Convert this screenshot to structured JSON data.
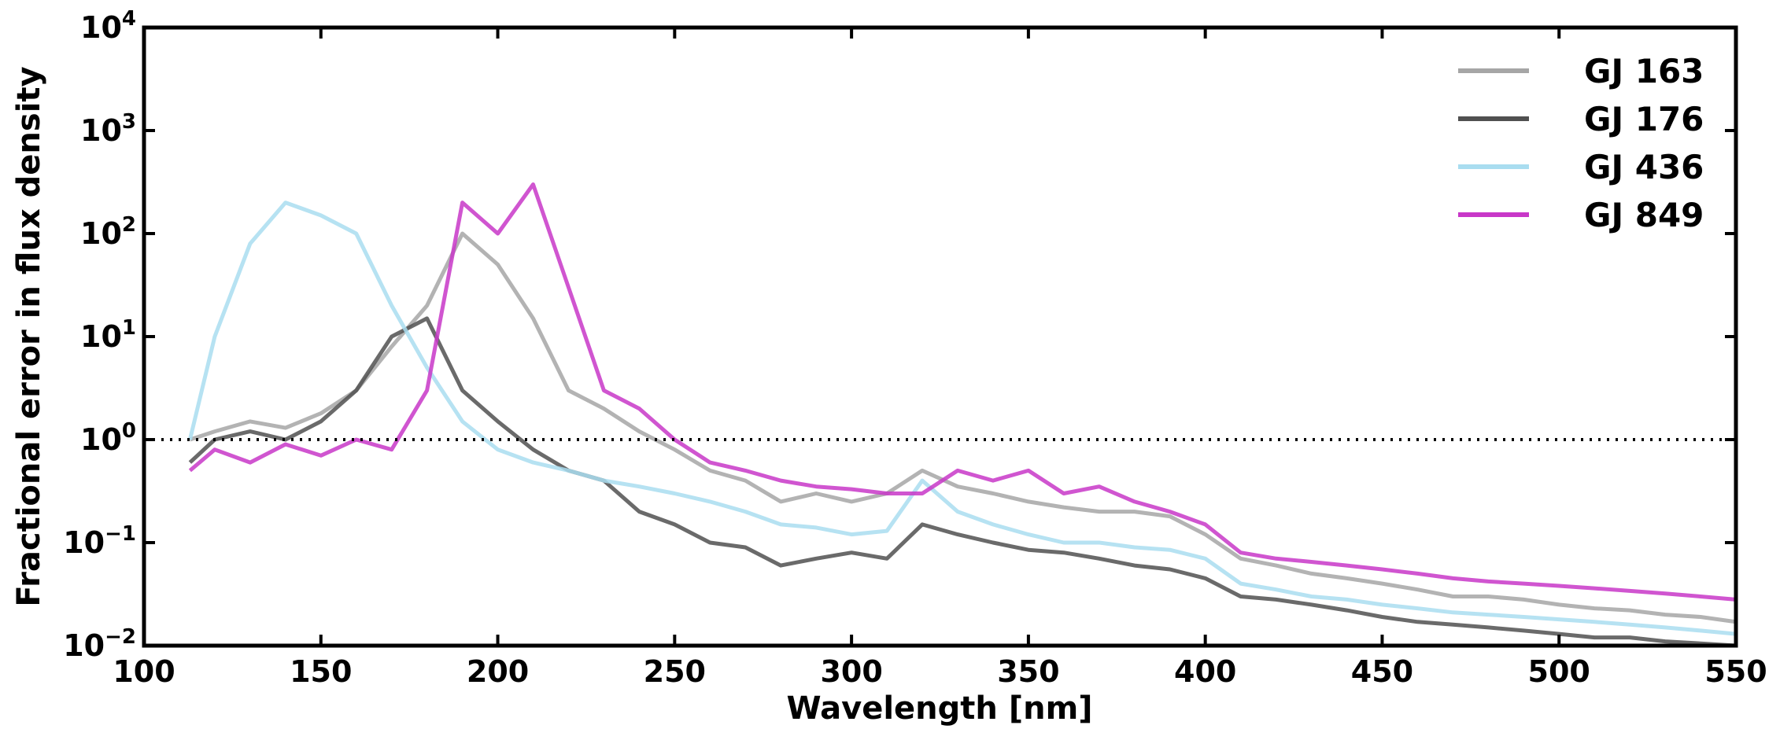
{
  "chart_data": {
    "type": "line",
    "title": "",
    "xlabel": "Wavelength [nm]",
    "ylabel": "Fractional error in flux density",
    "xlim": [
      100,
      550
    ],
    "ylim": [
      0.01,
      10000
    ],
    "yscale": "log",
    "x_ticks": [
      100,
      150,
      200,
      250,
      300,
      350,
      400,
      450,
      500,
      550
    ],
    "x_tick_labels": [
      "100",
      "150",
      "200",
      "250",
      "300",
      "350",
      "400",
      "450",
      "500",
      "550"
    ],
    "y_ticks": [
      0.01,
      0.1,
      1,
      10,
      100,
      1000,
      10000
    ],
    "y_tick_labels": [
      {
        "base": "10",
        "exp": "−2"
      },
      {
        "base": "10",
        "exp": "−1"
      },
      {
        "base": "10",
        "exp": "0"
      },
      {
        "base": "10",
        "exp": "1"
      },
      {
        "base": "10",
        "exp": "2"
      },
      {
        "base": "10",
        "exp": "3"
      },
      {
        "base": "10",
        "exp": "4"
      }
    ],
    "reference_line": {
      "y": 1,
      "style": "dotted",
      "color": "#000000"
    },
    "legend_position": "top-right",
    "series": [
      {
        "name": "GJ 163",
        "color": "#a6a6a6",
        "x": [
          113,
          120,
          130,
          140,
          150,
          160,
          170,
          180,
          190,
          200,
          210,
          220,
          230,
          240,
          250,
          260,
          270,
          280,
          290,
          300,
          310,
          320,
          330,
          340,
          350,
          360,
          370,
          380,
          390,
          400,
          410,
          420,
          430,
          440,
          450,
          460,
          470,
          480,
          490,
          500,
          510,
          520,
          530,
          540,
          550
        ],
        "values": [
          1.0,
          1.2,
          1.5,
          1.3,
          1.8,
          3.0,
          8.0,
          20,
          100,
          50,
          15,
          3.0,
          2.0,
          1.2,
          0.8,
          0.5,
          0.4,
          0.25,
          0.3,
          0.25,
          0.3,
          0.5,
          0.35,
          0.3,
          0.25,
          0.22,
          0.2,
          0.2,
          0.18,
          0.12,
          0.07,
          0.06,
          0.05,
          0.045,
          0.04,
          0.035,
          0.03,
          0.03,
          0.028,
          0.025,
          0.023,
          0.022,
          0.02,
          0.019,
          0.017
        ]
      },
      {
        "name": "GJ 176",
        "color": "#505050",
        "x": [
          113,
          120,
          130,
          140,
          150,
          160,
          170,
          180,
          190,
          200,
          210,
          220,
          230,
          240,
          250,
          260,
          270,
          280,
          290,
          300,
          310,
          320,
          330,
          340,
          350,
          360,
          370,
          380,
          390,
          400,
          410,
          420,
          430,
          440,
          450,
          460,
          470,
          480,
          490,
          500,
          510,
          520,
          530,
          540,
          550
        ],
        "values": [
          0.6,
          1.0,
          1.2,
          1.0,
          1.5,
          3.0,
          10,
          15,
          3.0,
          1.5,
          0.8,
          0.5,
          0.4,
          0.2,
          0.15,
          0.1,
          0.09,
          0.06,
          0.07,
          0.08,
          0.07,
          0.15,
          0.12,
          0.1,
          0.085,
          0.08,
          0.07,
          0.06,
          0.055,
          0.045,
          0.03,
          0.028,
          0.025,
          0.022,
          0.019,
          0.017,
          0.016,
          0.015,
          0.014,
          0.013,
          0.012,
          0.012,
          0.011,
          0.0105,
          0.01
        ]
      },
      {
        "name": "GJ 436",
        "color": "#a9ddf0",
        "x": [
          113,
          120,
          130,
          140,
          150,
          160,
          170,
          180,
          190,
          200,
          210,
          220,
          230,
          240,
          250,
          260,
          270,
          280,
          290,
          300,
          310,
          320,
          330,
          340,
          350,
          360,
          370,
          380,
          390,
          400,
          410,
          420,
          430,
          440,
          450,
          460,
          470,
          480,
          490,
          500,
          510,
          520,
          530,
          540,
          550
        ],
        "values": [
          1.0,
          10,
          80,
          200,
          150,
          100,
          20,
          5.0,
          1.5,
          0.8,
          0.6,
          0.5,
          0.4,
          0.35,
          0.3,
          0.25,
          0.2,
          0.15,
          0.14,
          0.12,
          0.13,
          0.4,
          0.2,
          0.15,
          0.12,
          0.1,
          0.1,
          0.09,
          0.085,
          0.07,
          0.04,
          0.035,
          0.03,
          0.028,
          0.025,
          0.023,
          0.021,
          0.02,
          0.019,
          0.018,
          0.017,
          0.016,
          0.015,
          0.014,
          0.013
        ]
      },
      {
        "name": "GJ 849",
        "color": "#c837c8",
        "x": [
          113,
          120,
          130,
          140,
          150,
          160,
          170,
          180,
          190,
          200,
          210,
          220,
          230,
          240,
          250,
          260,
          270,
          280,
          290,
          300,
          310,
          320,
          330,
          340,
          350,
          360,
          370,
          380,
          390,
          400,
          410,
          420,
          430,
          440,
          450,
          460,
          470,
          480,
          490,
          500,
          510,
          520,
          530,
          540,
          550
        ],
        "values": [
          0.5,
          0.8,
          0.6,
          0.9,
          0.7,
          1.0,
          0.8,
          3.0,
          200,
          100,
          300,
          30,
          3.0,
          2.0,
          1.0,
          0.6,
          0.5,
          0.4,
          0.35,
          0.33,
          0.3,
          0.3,
          0.5,
          0.4,
          0.5,
          0.3,
          0.35,
          0.25,
          0.2,
          0.15,
          0.08,
          0.07,
          0.065,
          0.06,
          0.055,
          0.05,
          0.045,
          0.042,
          0.04,
          0.038,
          0.036,
          0.034,
          0.032,
          0.03,
          0.028
        ]
      }
    ]
  }
}
